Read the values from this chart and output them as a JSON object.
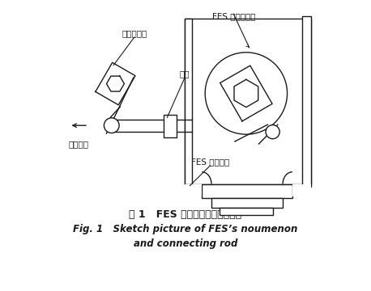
{
  "title_zh": "图 1   FES 本体及连杆侧视示意图",
  "title_en_line1": "Fig. 1   Sketch picture of FES’s noumenon",
  "title_en_line2": "and connecting rod",
  "label_jigou": "机构输出轴",
  "label_liangan": "连杆",
  "label_hejian": "合闸方向",
  "label_fes_output": "FES 本体输出轴",
  "label_fes_shell": "FES 本体外壳",
  "bg_color": "#ffffff",
  "line_color": "#1a1a1a",
  "lw": 1.0,
  "fig_w": 4.58,
  "fig_h": 3.6,
  "dpi": 100
}
